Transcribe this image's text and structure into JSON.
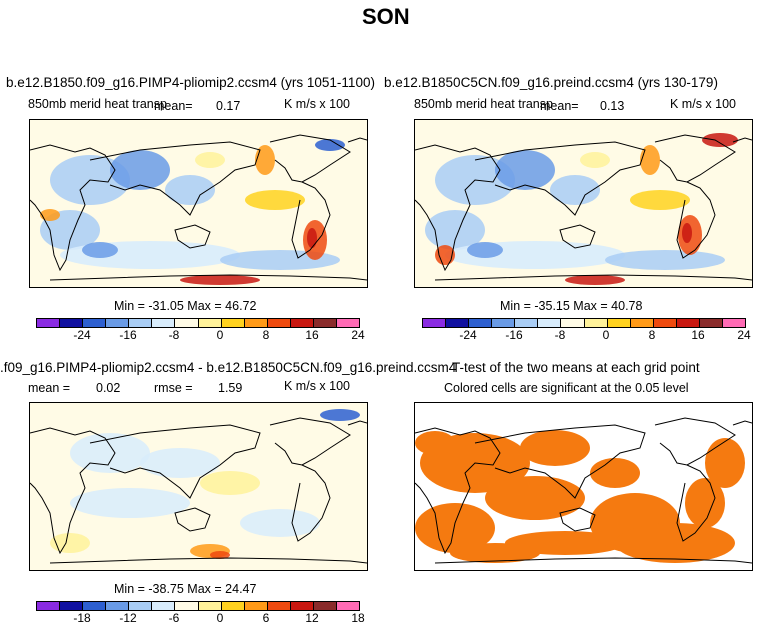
{
  "page_title": "SON",
  "chart_data": [
    {
      "type": "heatmap",
      "id": "panel-1",
      "title": "b.e12.B1850.f09_g16.PIMP4-pliomip2.ccsm4 (yrs 1051-1100)",
      "left_label": "850mb merid heat transp",
      "mean_text": "mean=",
      "mean": "0.17",
      "units": "K m/s x 100",
      "minmax": "Min = -31.05 Max =  46.72",
      "colorbar_ticks": [
        "-24",
        "-16",
        "-8",
        "0",
        "8",
        "16",
        "24"
      ]
    },
    {
      "type": "heatmap",
      "id": "panel-2",
      "title": "b.e12.B1850C5CN.f09_g16.preind.ccsm4 (yrs 130-179)",
      "left_label": "850mb merid heat transp",
      "mean_text": "mean=",
      "mean": "0.13",
      "units": "K m/s x 100",
      "minmax": "Min = -35.15 Max =  40.78",
      "colorbar_ticks": [
        "-24",
        "-16",
        "-8",
        "0",
        "8",
        "16",
        "24"
      ]
    },
    {
      "type": "heatmap",
      "id": "panel-3",
      "title": ".f09_g16.PIMP4-pliomip2.ccsm4 - b.e12.B1850C5CN.f09_g16.preind.ccsm4",
      "mean_text": "mean =",
      "mean": "0.02",
      "rmse_text": "rmse =",
      "rmse": "1.59",
      "units": "K m/s x 100",
      "minmax": "Min = -38.75 Max =  24.47",
      "colorbar_ticks": [
        "-18",
        "-12",
        "-6",
        "0",
        "6",
        "12",
        "18"
      ]
    },
    {
      "type": "heatmap",
      "id": "panel-4",
      "title": "T-test of the two means at each grid point",
      "subtitle": "Colored cells are significant at the 0.05 level"
    }
  ],
  "colors": {
    "scale": [
      "#8a2be2",
      "#1010a0",
      "#2d5fd0",
      "#6a9be6",
      "#a9cdf5",
      "#d8ecfc",
      "#fffbe6",
      "#fff29a",
      "#ffd21f",
      "#ff9a18",
      "#ee4a0f",
      "#c81710",
      "#8a2b2b",
      "#ff6bb5"
    ],
    "ttest": "#f57a10",
    "land_line": "#000000"
  }
}
